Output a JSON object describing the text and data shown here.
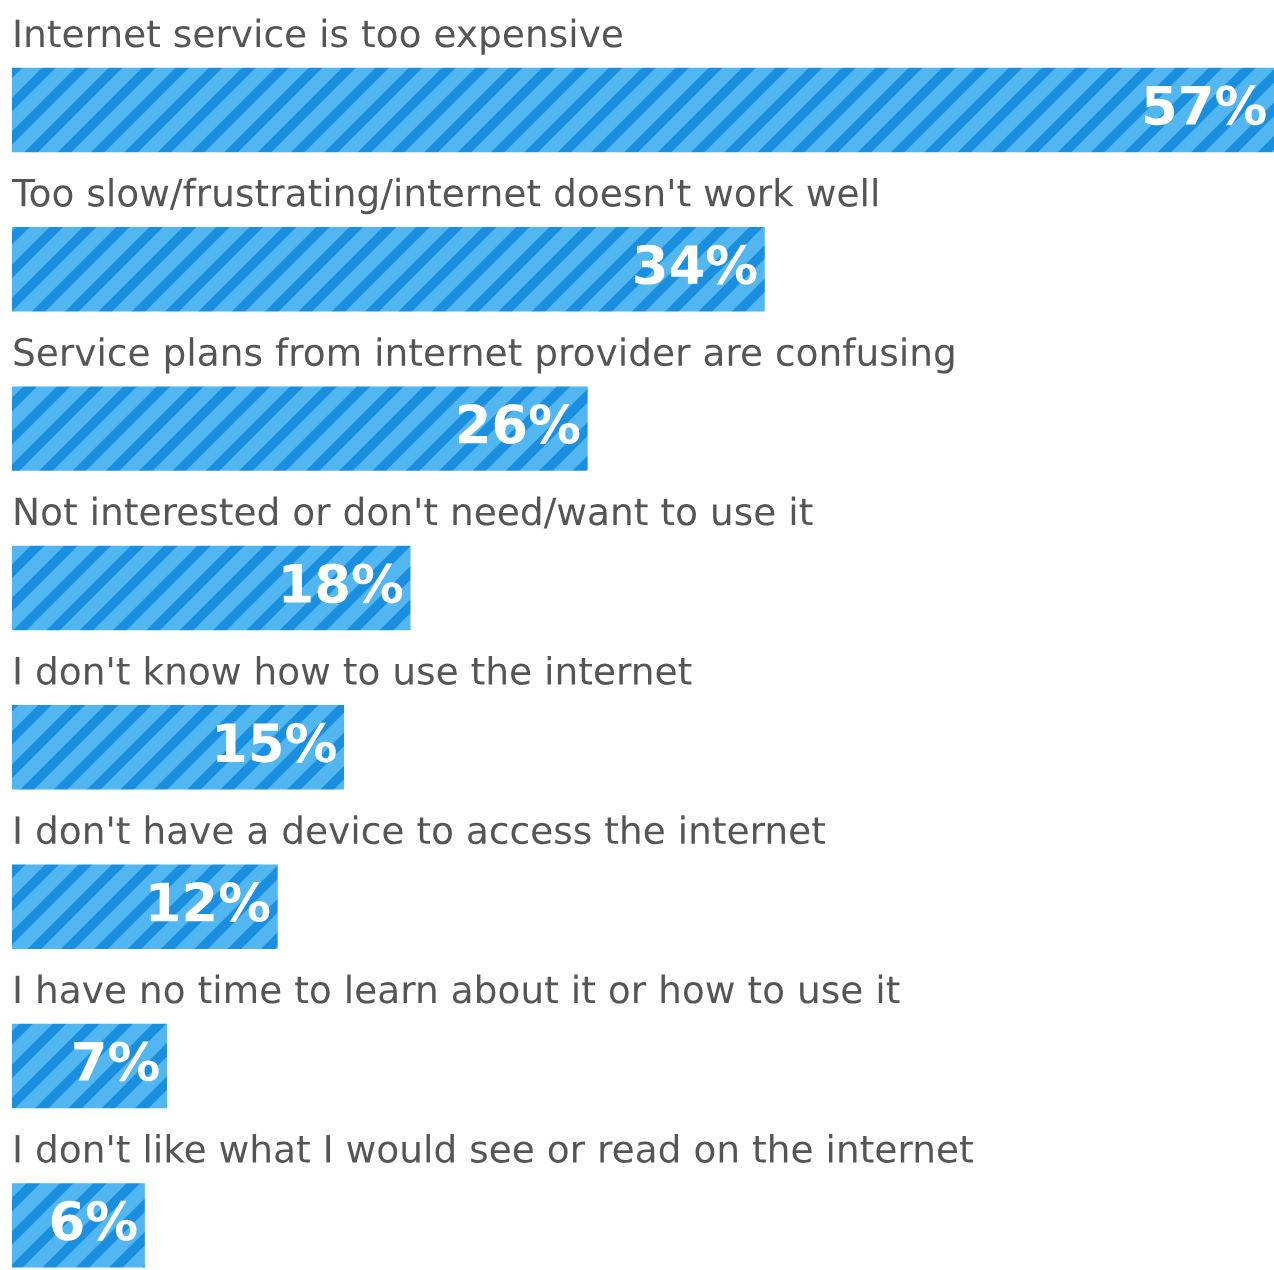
{
  "chart_data": {
    "type": "bar",
    "orientation": "horizontal",
    "categories": [
      "Internet service is too expensive",
      "Too slow/frustrating/internet doesn't work well",
      "Service plans from internet provider are confusing",
      "Not interested or don't need/want to use it",
      "I don't know how to use the internet",
      "I don't have a device to access the internet",
      "I have no time to learn about it or how to use it",
      "I don't like what I would see or read on the internet"
    ],
    "values": [
      57,
      34,
      26,
      18,
      15,
      12,
      7,
      6
    ],
    "value_labels": [
      "57%",
      "34%",
      "26%",
      "18%",
      "15%",
      "12%",
      "7%",
      "6%"
    ],
    "color": "#1a8fe0"
  }
}
